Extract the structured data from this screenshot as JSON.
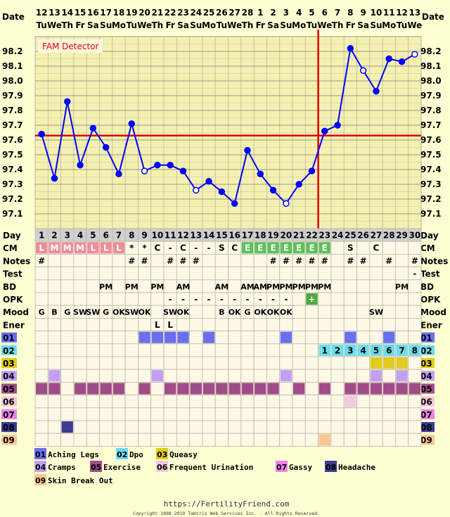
{
  "header": {
    "date_label": "Date",
    "dates": [
      "12",
      "13",
      "14",
      "15",
      "16",
      "17",
      "18",
      "19",
      "20",
      "21",
      "22",
      "23",
      "24",
      "25",
      "26",
      "27",
      "28",
      "1",
      "2",
      "3",
      "4",
      "5",
      "6",
      "7",
      "8",
      "9",
      "10",
      "11",
      "12",
      "13"
    ],
    "weekdays": [
      "Tu",
      "We",
      "Th",
      "Fr",
      "Sa",
      "Su",
      "Mo",
      "Tu",
      "We",
      "Th",
      "Fr",
      "Sa",
      "Su",
      "Mo",
      "Tu",
      "We",
      "Th",
      "Fr",
      "Sa",
      "Su",
      "Mo",
      "Tu",
      "We",
      "Th",
      "Fr",
      "Sa",
      "Su",
      "Mo",
      "Tu",
      "We"
    ]
  },
  "detector_label": "FAM Detector",
  "chart_data": {
    "type": "line",
    "title": "",
    "y_ticks": [
      "98.2",
      "98.1",
      "98.0",
      "97.9",
      "97.8",
      "97.7",
      "97.6",
      "97.5",
      "97.4",
      "97.3",
      "97.2",
      "97.1"
    ],
    "ylim": [
      97.0,
      98.3
    ],
    "x": [
      1,
      2,
      3,
      4,
      5,
      6,
      7,
      8,
      9,
      10,
      11,
      12,
      13,
      14,
      15,
      16,
      17,
      18,
      19,
      20,
      21,
      22,
      23,
      24,
      25,
      26,
      27,
      28,
      29,
      30
    ],
    "values": [
      97.64,
      97.34,
      97.86,
      97.43,
      97.68,
      97.55,
      97.37,
      97.71,
      97.39,
      97.43,
      97.43,
      97.39,
      97.26,
      97.32,
      97.25,
      97.17,
      97.53,
      97.37,
      97.26,
      97.17,
      97.3,
      97.39,
      97.66,
      97.7,
      98.22,
      98.07,
      97.93,
      98.15,
      98.13,
      98.18
    ],
    "open_points": [
      9,
      13,
      20,
      26,
      30
    ],
    "coverline": 97.63,
    "ovulation_day": 22,
    "grid": true
  },
  "rows": {
    "labels": [
      "Day",
      "CM",
      "Notes",
      "Test",
      "BD",
      "OPK",
      "Mood",
      "Ener",
      "01",
      "02",
      "03",
      "04",
      "05",
      "06",
      "07",
      "08",
      "09"
    ],
    "day": [
      "1",
      "2",
      "3",
      "4",
      "5",
      "6",
      "7",
      "8",
      "9",
      "10",
      "11",
      "12",
      "13",
      "14",
      "15",
      "16",
      "17",
      "18",
      "19",
      "20",
      "21",
      "22",
      "23",
      "24",
      "25",
      "26",
      "27",
      "28",
      "29",
      "30"
    ],
    "cm": [
      "L",
      "M",
      "M",
      "M",
      "L",
      "L",
      "L",
      "*",
      "*",
      "C",
      "-",
      "C",
      "-",
      "-",
      "S",
      "C",
      "E",
      "E",
      "E",
      "E",
      "E",
      "E",
      "E",
      "",
      "S",
      "",
      "C",
      "",
      "",
      ""
    ],
    "notes": [
      "#",
      "",
      "",
      "",
      "",
      "",
      "",
      "#",
      "#",
      "",
      "#",
      "#",
      "#",
      "",
      "",
      "",
      "",
      "",
      "#",
      "#",
      "#",
      "#",
      "#",
      "",
      "#",
      "#",
      "",
      "#",
      "",
      "#"
    ],
    "test": [
      "",
      "",
      "",
      "",
      "",
      "",
      "",
      "",
      "",
      "",
      "",
      "",
      "",
      "",
      "",
      "",
      "",
      "",
      "",
      "",
      "",
      "",
      "",
      "",
      "",
      "",
      "",
      "",
      "",
      "-"
    ],
    "bd": [
      "",
      "",
      "",
      "",
      "",
      "PM",
      "",
      "PM",
      "",
      "PM",
      "",
      "AM",
      "",
      "",
      "AM",
      "",
      "AM",
      "AM",
      "PM",
      "PM",
      "PM",
      "PM",
      "PM",
      "",
      "",
      "",
      "",
      "",
      "PM",
      ""
    ],
    "opk": [
      "",
      "",
      "",
      "",
      "",
      "",
      "",
      "",
      "",
      "",
      "-",
      "-",
      "-",
      "-",
      "-",
      "-",
      "-",
      "-",
      "-",
      "-",
      "",
      "+",
      "",
      "",
      "",
      "",
      "",
      "",
      "",
      ""
    ],
    "mood": [
      "G",
      "B",
      "G",
      "SW",
      "SW",
      "G",
      "OK",
      "SW",
      "OK",
      "",
      "SW",
      "OK",
      "",
      "",
      "B",
      "OK",
      "G",
      "OK",
      "OK",
      "OK",
      "",
      "",
      "",
      "",
      "",
      "",
      "SW",
      "",
      "",
      ""
    ],
    "ener": [
      "",
      "",
      "",
      "",
      "",
      "",
      "",
      "",
      "",
      "L",
      "L",
      "",
      "",
      "",
      "",
      "",
      "",
      "",
      "",
      "",
      "",
      "",
      "",
      "",
      "",
      "",
      "",
      "",
      "",
      ""
    ],
    "dpo": [
      "",
      "",
      "",
      "",
      "",
      "",
      "",
      "",
      "",
      "",
      "",
      "",
      "",
      "",
      "",
      "",
      "",
      "",
      "",
      "",
      "",
      "",
      "1",
      "2",
      "3",
      "4",
      "5",
      "6",
      "7",
      "8"
    ]
  },
  "legend": [
    {
      "code": "01",
      "text": "Aching Legs"
    },
    {
      "code": "02",
      "text": "Dpo"
    },
    {
      "code": "03",
      "text": "Queasy"
    },
    {
      "code": "04",
      "text": "Cramps"
    },
    {
      "code": "05",
      "text": "Exercise"
    },
    {
      "code": "06",
      "text": "Frequent Urination"
    },
    {
      "code": "07",
      "text": "Gassy"
    },
    {
      "code": "08",
      "text": "Headache"
    },
    {
      "code": "09",
      "text": "Skin Break Out"
    }
  ],
  "footer": {
    "url": "https://FertilityFriend.com",
    "copyright": "Copyright 1998-2019 Tamtris Web Services Inc. - All Rights Reserved."
  },
  "colors": {
    "background": "#ffffd4",
    "grid_fill": "#f4f0b0",
    "line": "#0000ff",
    "coverline": "#dd0000",
    "c01": "#6a6ff0",
    "c02": "#6cdcec",
    "c03": "#e0cc20",
    "c04": "#c4a0f4",
    "c05": "#a04c88",
    "c06": "#f4c8dc",
    "c07": "#f080ec",
    "c08": "#3c3c94",
    "c09": "#f8c890",
    "cm_L": "#ee8c9c",
    "cm_E": "#5cc05c",
    "cm_M": "#ee8c9c",
    "opk_plus": "#4caa3c"
  }
}
